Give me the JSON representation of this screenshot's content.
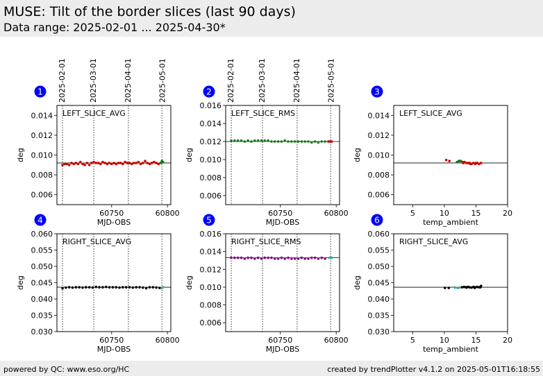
{
  "header": {
    "title": "MUSE: Tilt of the border slices (last 90 days)",
    "subtitle": "Data range: 2025-02-01 ... 2025-04-30*"
  },
  "footer": {
    "left": "powered by QC: www.eso.org/HC",
    "right": "created by trendPlotter v4.1.2 on 2025-05-01T16:18:55"
  },
  "top_date_labels": [
    "2025-02-01",
    "2025-03-01",
    "2025-04-01",
    "2025-05-01"
  ],
  "colors": {
    "red": "#cc0000",
    "green": "#117711",
    "purple": "#880088",
    "black": "#000000",
    "cyan": "#33aaaa",
    "badge": "#0000ff"
  },
  "chart_data": [
    {
      "id": 1,
      "type": "scatter",
      "label": "LEFT_SLICE_AVG",
      "xlabel": "MJD-OBS",
      "ylabel": "deg",
      "xlim": [
        60701,
        60803
      ],
      "ylim": [
        0.005,
        0.015
      ],
      "xticks": [
        60750,
        60800
      ],
      "xticklabels": [
        "60750",
        "60800"
      ],
      "yticks": [
        0.006,
        0.008,
        0.01,
        0.012,
        0.014
      ],
      "yticklabels": [
        "0.006",
        "0.008",
        "0.010",
        "0.012",
        "0.014"
      ],
      "vlines": [
        60706,
        60734,
        60765,
        60795
      ],
      "hline": 0.0092,
      "series": [
        {
          "color": "#cc0000",
          "x": [
            60706,
            60708,
            60710,
            60712,
            60714,
            60716,
            60718,
            60720,
            60722,
            60724,
            60726,
            60728,
            60730,
            60732,
            60734,
            60736,
            60738,
            60740,
            60742,
            60744,
            60746,
            60748,
            60750,
            60752,
            60754,
            60756,
            60758,
            60760,
            60762,
            60764,
            60766,
            60768,
            60770,
            60772,
            60774,
            60776,
            60778,
            60780,
            60782,
            60784,
            60786,
            60788,
            60790,
            60792
          ],
          "y": [
            0.009,
            0.0091,
            0.0091,
            0.009,
            0.0092,
            0.0091,
            0.0092,
            0.0091,
            0.0093,
            0.0091,
            0.009,
            0.0092,
            0.009,
            0.0092,
            0.0093,
            0.0092,
            0.0092,
            0.0091,
            0.0093,
            0.0092,
            0.0091,
            0.0092,
            0.0091,
            0.0092,
            0.0091,
            0.0092,
            0.0092,
            0.0091,
            0.0093,
            0.0092,
            0.0092,
            0.0091,
            0.0092,
            0.0092,
            0.0093,
            0.0091,
            0.0092,
            0.0094,
            0.0092,
            0.0091,
            0.0092,
            0.0093,
            0.0092,
            0.0091
          ]
        },
        {
          "color": "#117711",
          "x": [
            60794,
            60795,
            60796
          ],
          "y": [
            0.0092,
            0.0094,
            0.0093
          ]
        }
      ]
    },
    {
      "id": 2,
      "type": "scatter",
      "label": "LEFT_SLICE_RMS",
      "xlabel": "MJD-OBS",
      "ylabel": "deg",
      "xlim": [
        60701,
        60803
      ],
      "ylim": [
        0.005,
        0.016
      ],
      "xticks": [
        60750,
        60800
      ],
      "xticklabels": [
        "60750",
        "60800"
      ],
      "yticks": [
        0.006,
        0.008,
        0.01,
        0.012,
        0.014,
        0.016
      ],
      "yticklabels": [
        "0.006",
        "0.008",
        "0.010",
        "0.012",
        "0.014",
        "0.016"
      ],
      "vlines": [
        60706,
        60734,
        60765,
        60795
      ],
      "hline": 0.012,
      "series": [
        {
          "color": "#117711",
          "x": [
            60706,
            60709,
            60712,
            60715,
            60718,
            60721,
            60724,
            60727,
            60730,
            60733,
            60736,
            60739,
            60742,
            60745,
            60748,
            60751,
            60754,
            60757,
            60760,
            60763,
            60766,
            60769,
            60772,
            60775,
            60778,
            60781,
            60784,
            60787,
            60790
          ],
          "y": [
            0.0121,
            0.0121,
            0.0121,
            0.0121,
            0.012,
            0.0121,
            0.012,
            0.0121,
            0.0121,
            0.0121,
            0.0121,
            0.0121,
            0.012,
            0.012,
            0.012,
            0.012,
            0.0121,
            0.012,
            0.012,
            0.012,
            0.012,
            0.012,
            0.012,
            0.012,
            0.0119,
            0.012,
            0.0119,
            0.012,
            0.012
          ]
        },
        {
          "color": "#cc0000",
          "x": [
            60793,
            60794,
            60795,
            60796
          ],
          "y": [
            0.012,
            0.012,
            0.012,
            0.012
          ]
        }
      ]
    },
    {
      "id": 3,
      "type": "scatter",
      "label": "LEFT_SLICE_AVG",
      "xlabel": "temp_ambient",
      "ylabel": "deg",
      "xlim": [
        2,
        20
      ],
      "ylim": [
        0.005,
        0.015
      ],
      "xticks": [
        5,
        10,
        15,
        20
      ],
      "xticklabels": [
        "5",
        "10",
        "15",
        "20"
      ],
      "yticks": [
        0.006,
        0.008,
        0.01,
        0.012,
        0.014
      ],
      "yticklabels": [
        "0.006",
        "0.008",
        "0.010",
        "0.012",
        "0.014"
      ],
      "vlines": [],
      "hline": 0.0092,
      "series": [
        {
          "color": "#cc0000",
          "x": [
            10.3,
            10.8,
            12.4,
            12.9,
            13.2,
            13.5,
            13.8,
            14.0,
            14.3,
            14.6,
            14.9,
            15.2,
            15.5,
            15.8,
            13.0,
            14.1,
            15.0
          ],
          "y": [
            0.0095,
            0.0094,
            0.0094,
            0.0093,
            0.0093,
            0.0092,
            0.0092,
            0.0092,
            0.0091,
            0.0092,
            0.0091,
            0.0092,
            0.0091,
            0.0092,
            0.0092,
            0.0091,
            0.0092
          ]
        },
        {
          "color": "#117711",
          "x": [
            12.0,
            12.3,
            12.6
          ],
          "y": [
            0.0093,
            0.0094,
            0.0094
          ]
        }
      ]
    },
    {
      "id": 4,
      "type": "scatter",
      "label": "RIGHT_SLICE_AVG",
      "xlabel": "MJD-OBS",
      "ylabel": "deg",
      "xlim": [
        60701,
        60803
      ],
      "ylim": [
        0.03,
        0.06
      ],
      "xticks": [
        60750,
        60800
      ],
      "xticklabels": [
        "60750",
        "60800"
      ],
      "yticks": [
        0.03,
        0.035,
        0.04,
        0.045,
        0.05,
        0.055,
        0.06
      ],
      "yticklabels": [
        "0.030",
        "0.035",
        "0.040",
        "0.045",
        "0.050",
        "0.055",
        "0.060"
      ],
      "vlines": [
        60706,
        60734,
        60765,
        60795
      ],
      "hline": 0.0436,
      "series": [
        {
          "color": "#000000",
          "x": [
            60706,
            60709,
            60712,
            60715,
            60718,
            60721,
            60724,
            60727,
            60730,
            60733,
            60736,
            60739,
            60742,
            60745,
            60748,
            60751,
            60754,
            60757,
            60760,
            60763,
            60766,
            60769,
            60772,
            60775,
            60778,
            60781,
            60784,
            60787,
            60790,
            60793
          ],
          "y": [
            0.0433,
            0.0435,
            0.0436,
            0.0435,
            0.0436,
            0.0436,
            0.0435,
            0.0436,
            0.0436,
            0.0435,
            0.0437,
            0.0436,
            0.0436,
            0.0437,
            0.0436,
            0.0436,
            0.0436,
            0.0435,
            0.0436,
            0.0436,
            0.0436,
            0.0435,
            0.0436,
            0.0436,
            0.0435,
            0.0433,
            0.0436,
            0.0436,
            0.0435,
            0.0434
          ]
        },
        {
          "color": "#33aaaa",
          "x": [
            60795,
            60796
          ],
          "y": [
            0.0434,
            0.0436
          ]
        }
      ]
    },
    {
      "id": 5,
      "type": "scatter",
      "label": "RIGHT_SLICE_RMS",
      "xlabel": "MJD-OBS",
      "ylabel": "deg",
      "xlim": [
        60701,
        60803
      ],
      "ylim": [
        0.005,
        0.016
      ],
      "xticks": [
        60750,
        60800
      ],
      "xticklabels": [
        "60750",
        "60800"
      ],
      "yticks": [
        0.006,
        0.008,
        0.01,
        0.012,
        0.014,
        0.016
      ],
      "yticklabels": [
        "0.006",
        "0.008",
        "0.010",
        "0.012",
        "0.014",
        "0.016"
      ],
      "vlines": [
        60706,
        60734,
        60765,
        60795
      ],
      "hline": 0.0133,
      "series": [
        {
          "color": "#880088",
          "x": [
            60706,
            60709,
            60712,
            60715,
            60718,
            60721,
            60724,
            60727,
            60730,
            60733,
            60736,
            60739,
            60742,
            60745,
            60748,
            60751,
            60754,
            60757,
            60760,
            60763,
            60766,
            60769,
            60772,
            60775,
            60778,
            60781,
            60784,
            60787,
            60790
          ],
          "y": [
            0.0133,
            0.0133,
            0.0133,
            0.0133,
            0.0132,
            0.0133,
            0.0133,
            0.0132,
            0.0133,
            0.0132,
            0.0133,
            0.0133,
            0.0133,
            0.0132,
            0.0132,
            0.0133,
            0.0132,
            0.0133,
            0.0132,
            0.0132,
            0.0132,
            0.0133,
            0.0132,
            0.0132,
            0.0133,
            0.0133,
            0.0132,
            0.0133,
            0.0132
          ]
        },
        {
          "color": "#33aaaa",
          "x": [
            60794,
            60795,
            60796
          ],
          "y": [
            0.0133,
            0.0133,
            0.0133
          ]
        }
      ]
    },
    {
      "id": 6,
      "type": "scatter",
      "label": "RIGHT_SLICE_AVG",
      "xlabel": "temp_ambient",
      "ylabel": "deg",
      "xlim": [
        2,
        20
      ],
      "ylim": [
        0.03,
        0.06
      ],
      "xticks": [
        5,
        10,
        15,
        20
      ],
      "xticklabels": [
        "5",
        "10",
        "15",
        "20"
      ],
      "yticks": [
        0.03,
        0.035,
        0.04,
        0.045,
        0.05,
        0.055,
        0.06
      ],
      "yticklabels": [
        "0.030",
        "0.035",
        "0.040",
        "0.045",
        "0.050",
        "0.055",
        "0.060"
      ],
      "vlines": [],
      "hline": 0.0436,
      "series": [
        {
          "color": "#000000",
          "x": [
            10.1,
            10.7,
            12.8,
            13.1,
            13.4,
            13.7,
            14.0,
            14.3,
            14.6,
            14.9,
            15.2,
            15.5,
            15.8,
            13.5,
            14.8,
            15.7
          ],
          "y": [
            0.0434,
            0.0434,
            0.0436,
            0.0437,
            0.0436,
            0.0437,
            0.0436,
            0.0435,
            0.0437,
            0.0436,
            0.0437,
            0.0436,
            0.044,
            0.0435,
            0.0434,
            0.0436
          ]
        },
        {
          "color": "#33aaaa",
          "x": [
            11.7,
            12.1,
            12.4
          ],
          "y": [
            0.0435,
            0.0434,
            0.0435
          ]
        }
      ]
    }
  ]
}
